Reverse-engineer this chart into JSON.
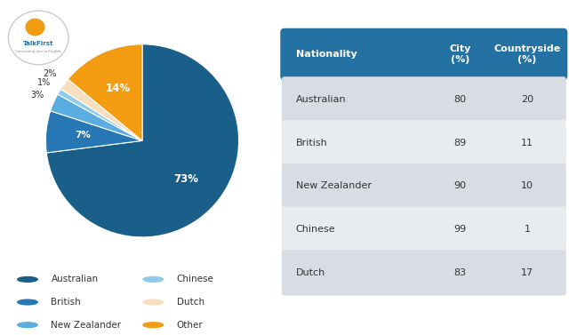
{
  "pie_values": [
    73,
    7,
    3,
    1,
    2,
    14
  ],
  "pie_labels": [
    "Australian",
    "British",
    "New Zealander",
    "Chinese",
    "Dutch",
    "Other"
  ],
  "pie_colors": [
    "#1a5f8a",
    "#2777b4",
    "#5aade0",
    "#90cce8",
    "#f5dfc0",
    "#f39c12"
  ],
  "pie_pct_labels": [
    "73%",
    "7%",
    "3%",
    "1%",
    "2%",
    "14%"
  ],
  "legend_labels": [
    "Australian",
    "British",
    "New Zealander",
    "Chinese",
    "Dutch",
    "Other"
  ],
  "legend_colors": [
    "#1a5f8a",
    "#2777b4",
    "#5aade0",
    "#90cce8",
    "#f5dfc0",
    "#f39c12"
  ],
  "table_header": [
    "Nationality",
    "City\n(%)",
    "Countryside\n(%)"
  ],
  "table_rows": [
    [
      "Australian",
      "80",
      "20"
    ],
    [
      "British",
      "89",
      "11"
    ],
    [
      "New Zealander",
      "90",
      "10"
    ],
    [
      "Chinese",
      "99",
      "1"
    ],
    [
      "Dutch",
      "83",
      "17"
    ]
  ],
  "table_header_bg": "#2471a3",
  "table_row_bg_odd": "#d8dde3",
  "table_row_bg_even": "#e8ecef",
  "table_header_color": "#ffffff",
  "table_row_color": "#333333",
  "bg_color": "#ffffff"
}
